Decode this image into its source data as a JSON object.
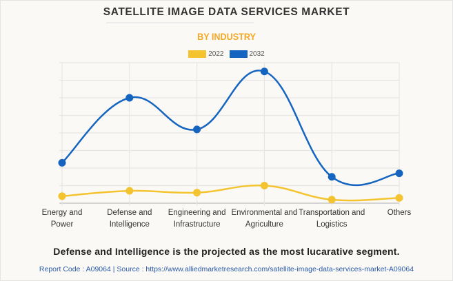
{
  "chart_data": {
    "type": "line",
    "title": "SATELLITE IMAGE DATA SERVICES MARKET",
    "subtitle": "BY INDUSTRY",
    "categories": [
      [
        "Energy and",
        "Power"
      ],
      [
        "Defense and",
        "Intelligence"
      ],
      [
        "Engineering and",
        "Infrastructure"
      ],
      [
        "Environmental and",
        "Agriculture"
      ],
      [
        "Transportation and",
        "Logistics"
      ],
      [
        "Others"
      ]
    ],
    "series": [
      {
        "name": "2022",
        "color": "#f4c430",
        "values": [
          0.4,
          0.7,
          0.6,
          1.0,
          0.2,
          0.3
        ]
      },
      {
        "name": "2032",
        "color": "#1565c0",
        "values": [
          2.3,
          6.0,
          4.2,
          7.5,
          1.5,
          1.7
        ]
      }
    ],
    "xlabel": "",
    "ylabel": "",
    "ylim": [
      0,
      8
    ],
    "y_ticks_labeled": false,
    "grid": true,
    "legend": "top-center",
    "note": "Values are relative (no y-axis labels shown)"
  },
  "footer": {
    "highlight": "Defense and Intelligence is the projected as the most lucarative segment.",
    "source": "Report Code : A09064  |  Source : https://www.alliedmarketresearch.com/satellite-image-data-services-market-A09064"
  }
}
